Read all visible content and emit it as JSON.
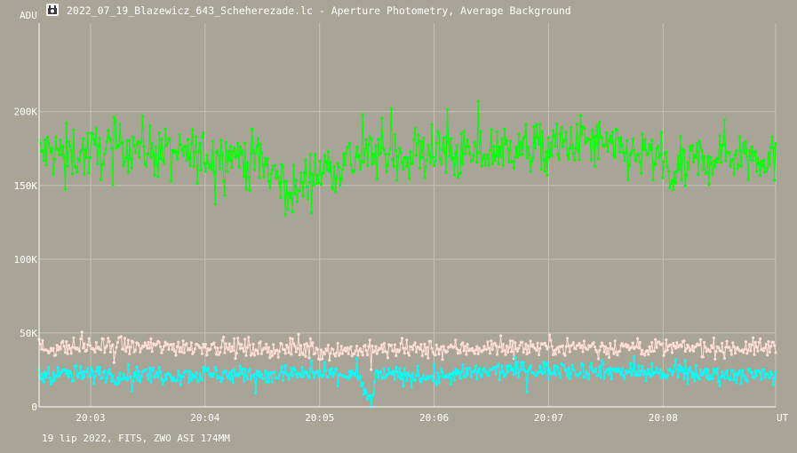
{
  "window": {
    "title": "2022_07_19_Blazewicz_643_Scheherezade.lc - Aperture Photometry, Average Background",
    "icon": "ccd-camera-icon"
  },
  "footer": {
    "text": "19 lip 2022, FITS, ZWO ASI 174MM"
  },
  "colors": {
    "background": "#a9a596",
    "grid": "#c6c3b7",
    "axis": "#ffffff",
    "series": [
      "#00ff00",
      "#ffddd5",
      "#00ffff"
    ]
  },
  "chart_data": {
    "type": "line",
    "ylabel": "ADU",
    "xlabel": "UT",
    "y_ticks": [
      {
        "value": 0,
        "label": "0"
      },
      {
        "value": 50000,
        "label": "50K"
      },
      {
        "value": 100000,
        "label": "100K"
      },
      {
        "value": 150000,
        "label": "150K"
      },
      {
        "value": 200000,
        "label": "200K"
      }
    ],
    "ylim": [
      0,
      260000
    ],
    "x_ticks": [
      "20:03",
      "20:04",
      "20:05",
      "20:06",
      "20:07",
      "20:08"
    ],
    "xlim": [
      "20:02:33",
      "20:08:59"
    ],
    "grid": true,
    "series": [
      {
        "color": "#00ff00",
        "profile": [
          {
            "t": "20:02:33",
            "y": 172000
          },
          {
            "t": "20:03:00",
            "y": 172000
          },
          {
            "t": "20:03:20",
            "y": 178000
          },
          {
            "t": "20:03:40",
            "y": 171000
          },
          {
            "t": "20:04:00",
            "y": 170000
          },
          {
            "t": "20:04:15",
            "y": 172000
          },
          {
            "t": "20:04:30",
            "y": 166000
          },
          {
            "t": "20:04:40",
            "y": 152000
          },
          {
            "t": "20:04:48",
            "y": 145000
          },
          {
            "t": "20:04:55",
            "y": 157000
          },
          {
            "t": "20:05:10",
            "y": 165000
          },
          {
            "t": "20:05:30",
            "y": 172000
          },
          {
            "t": "20:06:00",
            "y": 172000
          },
          {
            "t": "20:06:20",
            "y": 170000
          },
          {
            "t": "20:06:40",
            "y": 176000
          },
          {
            "t": "20:07:00",
            "y": 175000
          },
          {
            "t": "20:07:20",
            "y": 180000
          },
          {
            "t": "20:07:40",
            "y": 172000
          },
          {
            "t": "20:08:00",
            "y": 168000
          },
          {
            "t": "20:08:05",
            "y": 155000
          },
          {
            "t": "20:08:15",
            "y": 165000
          },
          {
            "t": "20:08:30",
            "y": 172000
          },
          {
            "t": "20:08:59",
            "y": 170000
          }
        ],
        "scatter": 9000
      },
      {
        "color": "#ffddd5",
        "profile": [
          {
            "t": "20:02:33",
            "y": 40000
          },
          {
            "t": "20:04:00",
            "y": 41000
          },
          {
            "t": "20:05:00",
            "y": 38000
          },
          {
            "t": "20:06:00",
            "y": 39000
          },
          {
            "t": "20:07:00",
            "y": 41000
          },
          {
            "t": "20:08:00",
            "y": 40000
          },
          {
            "t": "20:08:59",
            "y": 40000
          }
        ],
        "scatter": 3000
      },
      {
        "color": "#00ffff",
        "profile": [
          {
            "t": "20:02:33",
            "y": 22000
          },
          {
            "t": "20:05:20",
            "y": 22000
          },
          {
            "t": "20:05:23",
            "y": 10000
          },
          {
            "t": "20:05:27",
            "y": 3000
          },
          {
            "t": "20:05:30",
            "y": 22000
          },
          {
            "t": "20:06:00",
            "y": 20000
          },
          {
            "t": "20:06:40",
            "y": 25000
          },
          {
            "t": "20:07:20",
            "y": 25000
          },
          {
            "t": "20:08:00",
            "y": 23000
          },
          {
            "t": "20:08:59",
            "y": 21000
          }
        ],
        "scatter": 3000
      }
    ]
  }
}
